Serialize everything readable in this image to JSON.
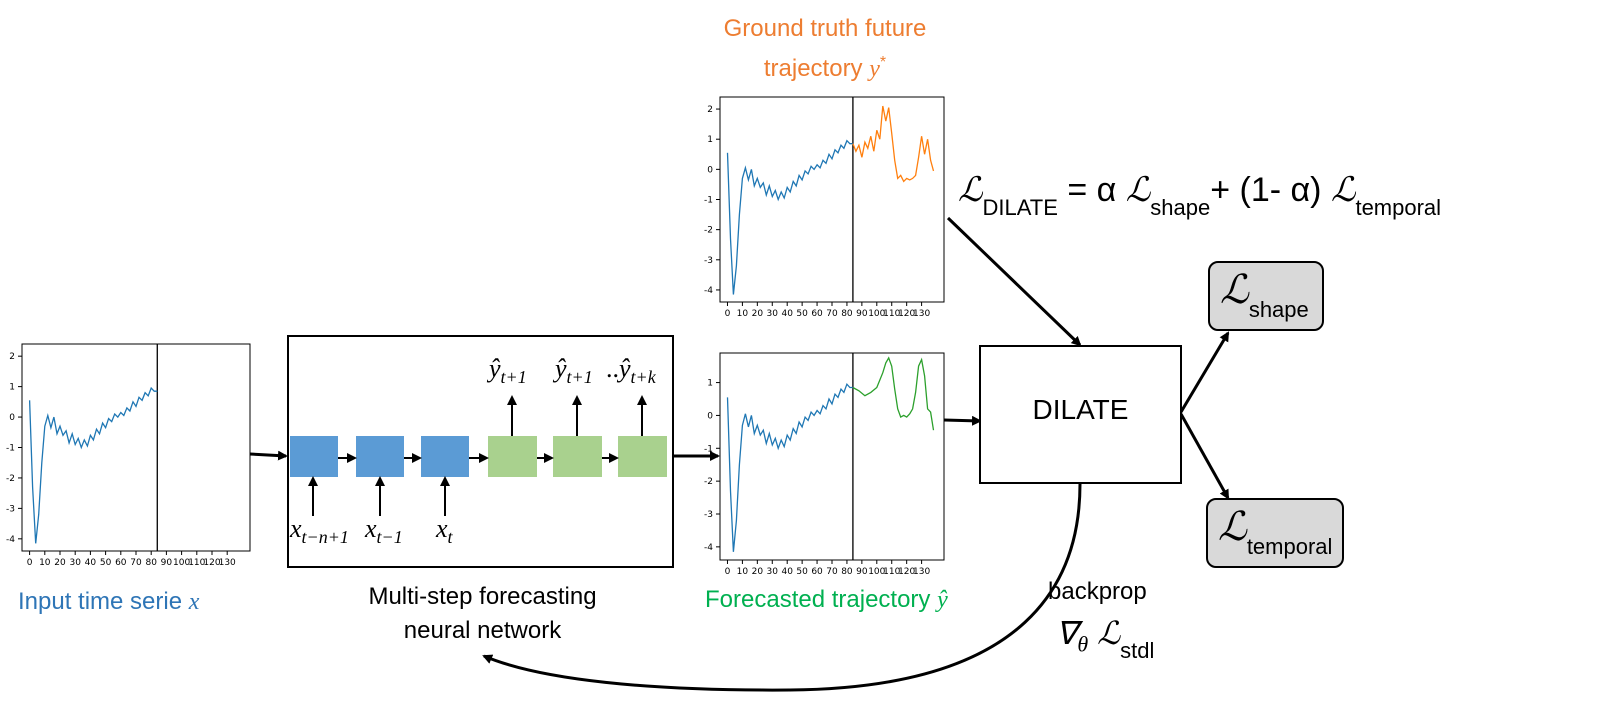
{
  "colors": {
    "input_series": "#1f77b4",
    "ground_truth": "#ff7f0e",
    "forecast": "#2ca02c",
    "encoder_cell": "#5b9bd5",
    "decoder_cell": "#a9d18e",
    "loss_box": "#d9d9d9",
    "caption_blue": "#2e75b6",
    "caption_orange": "#ed7d31",
    "caption_green": "#00b050"
  },
  "captions": {
    "input_prefix": "Input time serie",
    "input_symbol": "x",
    "gt_line1": "Ground truth future",
    "gt_line2_prefix": "trajectory",
    "gt_symbol": "y",
    "gt_sup": "*",
    "forecast_prefix": "Forecasted trajectory",
    "forecast_symbol": "ŷ",
    "network_line1": "Multi-step forecasting",
    "network_line2": "neural network"
  },
  "network": {
    "inputs": [
      {
        "base": "x",
        "sub": "t−n+1"
      },
      {
        "base": "x",
        "sub": "t−1"
      },
      {
        "base": "x",
        "sub": "t"
      }
    ],
    "outputs": [
      {
        "base": "ŷ",
        "sub": "t+1"
      },
      {
        "base": "ŷ",
        "sub": "t+1"
      },
      {
        "base": "ŷ",
        "sub": "t+k",
        "prefix": ".."
      }
    ]
  },
  "dilate": {
    "box_label": "DILATE",
    "formula": {
      "lhs_sub": "DILATE",
      "eq": "=",
      "alpha": "α",
      "shape_sub": "shape",
      "mid": "+ (1- α)",
      "temporal_sub": "temporal"
    },
    "outputs": [
      {
        "symbol": "ℒ",
        "sub": "shape"
      },
      {
        "symbol": "ℒ",
        "sub": "temporal"
      }
    ],
    "backprop": {
      "label": "backprop",
      "nabla": "∇",
      "theta": "θ",
      "symbol": "ℒ",
      "sub": "stdl"
    }
  },
  "chart_data": [
    {
      "type": "line",
      "name": "input",
      "xlim": [
        -5,
        145
      ],
      "ylim": [
        -4.4,
        2.4
      ],
      "yticks": [
        2,
        1,
        0,
        -1,
        -2,
        -3,
        -4
      ],
      "xticks": [
        "0",
        "10",
        "20",
        "30",
        "40",
        "50",
        "60",
        "70",
        "80",
        "90",
        "100",
        "110",
        "120",
        "130"
      ],
      "split_x": 84,
      "series": [
        {
          "color": "#1f77b4",
          "x": [
            0,
            2,
            4,
            6,
            8,
            10,
            12,
            14,
            16,
            18,
            20,
            22,
            24,
            26,
            28,
            30,
            32,
            34,
            36,
            38,
            40,
            42,
            44,
            46,
            48,
            50,
            52,
            54,
            56,
            58,
            60,
            62,
            64,
            66,
            68,
            70,
            72,
            74,
            76,
            78,
            80,
            82,
            84
          ],
          "y": [
            0.55,
            -2.3,
            -4.15,
            -3.2,
            -1.5,
            -0.3,
            0.05,
            -0.35,
            0.0,
            -0.55,
            -0.3,
            -0.6,
            -0.45,
            -0.85,
            -0.55,
            -0.9,
            -0.7,
            -1.0,
            -0.75,
            -0.95,
            -0.6,
            -0.75,
            -0.4,
            -0.55,
            -0.2,
            -0.35,
            -0.05,
            -0.15,
            0.1,
            0.0,
            0.15,
            0.05,
            0.3,
            0.2,
            0.5,
            0.35,
            0.65,
            0.55,
            0.8,
            0.7,
            0.95,
            0.85,
            0.85
          ]
        }
      ]
    },
    {
      "type": "line",
      "name": "ground-truth",
      "xlim": [
        -5,
        145
      ],
      "ylim": [
        -4.4,
        2.4
      ],
      "yticks": [
        2,
        1,
        0,
        -1,
        -2,
        -3,
        -4
      ],
      "xticks": [
        "0",
        "10",
        "20",
        "30",
        "40",
        "50",
        "60",
        "70",
        "80",
        "90",
        "100",
        "110",
        "120",
        "130"
      ],
      "split_x": 84,
      "series": [
        {
          "color": "#1f77b4",
          "x": [
            0,
            2,
            4,
            6,
            8,
            10,
            12,
            14,
            16,
            18,
            20,
            22,
            24,
            26,
            28,
            30,
            32,
            34,
            36,
            38,
            40,
            42,
            44,
            46,
            48,
            50,
            52,
            54,
            56,
            58,
            60,
            62,
            64,
            66,
            68,
            70,
            72,
            74,
            76,
            78,
            80,
            82,
            84
          ],
          "y": [
            0.55,
            -2.3,
            -4.15,
            -3.2,
            -1.5,
            -0.3,
            0.05,
            -0.35,
            0.0,
            -0.55,
            -0.3,
            -0.6,
            -0.45,
            -0.85,
            -0.55,
            -0.9,
            -0.7,
            -1.0,
            -0.75,
            -0.95,
            -0.6,
            -0.75,
            -0.4,
            -0.55,
            -0.2,
            -0.35,
            -0.05,
            -0.15,
            0.1,
            0.0,
            0.15,
            0.05,
            0.3,
            0.2,
            0.5,
            0.35,
            0.65,
            0.55,
            0.8,
            0.7,
            0.95,
            0.85,
            0.85
          ]
        },
        {
          "color": "#ff7f0e",
          "x": [
            84,
            86,
            88,
            90,
            92,
            94,
            96,
            98,
            100,
            102,
            104,
            106,
            108,
            110,
            112,
            114,
            116,
            118,
            120,
            122,
            124,
            126,
            128,
            130,
            132,
            134,
            136,
            138
          ],
          "y": [
            0.85,
            0.6,
            0.8,
            0.4,
            0.9,
            0.7,
            1.1,
            0.6,
            1.3,
            1.0,
            2.1,
            1.6,
            2.05,
            1.2,
            0.3,
            -0.3,
            -0.2,
            -0.4,
            -0.3,
            -0.35,
            -0.3,
            -0.2,
            0.4,
            1.1,
            0.5,
            1.0,
            0.3,
            -0.05
          ]
        }
      ]
    },
    {
      "type": "line",
      "name": "forecast",
      "xlim": [
        -5,
        145
      ],
      "ylim": [
        -4.4,
        1.9
      ],
      "yticks": [
        1,
        0,
        -1,
        -2,
        -3,
        -4
      ],
      "xticks": [
        "0",
        "10",
        "20",
        "30",
        "40",
        "50",
        "60",
        "70",
        "80",
        "90",
        "100",
        "110",
        "120",
        "130"
      ],
      "split_x": 84,
      "series": [
        {
          "color": "#1f77b4",
          "x": [
            0,
            2,
            4,
            6,
            8,
            10,
            12,
            14,
            16,
            18,
            20,
            22,
            24,
            26,
            28,
            30,
            32,
            34,
            36,
            38,
            40,
            42,
            44,
            46,
            48,
            50,
            52,
            54,
            56,
            58,
            60,
            62,
            64,
            66,
            68,
            70,
            72,
            74,
            76,
            78,
            80,
            82,
            84
          ],
          "y": [
            0.55,
            -2.3,
            -4.15,
            -3.2,
            -1.5,
            -0.3,
            0.05,
            -0.35,
            0.0,
            -0.55,
            -0.3,
            -0.6,
            -0.45,
            -0.85,
            -0.55,
            -0.9,
            -0.7,
            -1.0,
            -0.75,
            -0.95,
            -0.6,
            -0.75,
            -0.4,
            -0.55,
            -0.2,
            -0.35,
            -0.05,
            -0.15,
            0.1,
            0.0,
            0.15,
            0.05,
            0.3,
            0.2,
            0.5,
            0.35,
            0.65,
            0.55,
            0.8,
            0.7,
            0.95,
            0.85,
            0.85
          ]
        },
        {
          "color": "#2ca02c",
          "x": [
            84,
            88,
            92,
            96,
            100,
            104,
            106,
            108,
            110,
            112,
            114,
            116,
            118,
            120,
            122,
            124,
            126,
            128,
            130,
            132,
            134,
            136,
            138
          ],
          "y": [
            0.85,
            0.75,
            0.6,
            0.7,
            0.85,
            1.3,
            1.6,
            1.75,
            1.5,
            0.8,
            0.2,
            -0.05,
            0.0,
            -0.05,
            0.05,
            0.2,
            0.7,
            1.5,
            1.7,
            1.2,
            0.2,
            0.1,
            -0.45
          ]
        }
      ]
    }
  ]
}
